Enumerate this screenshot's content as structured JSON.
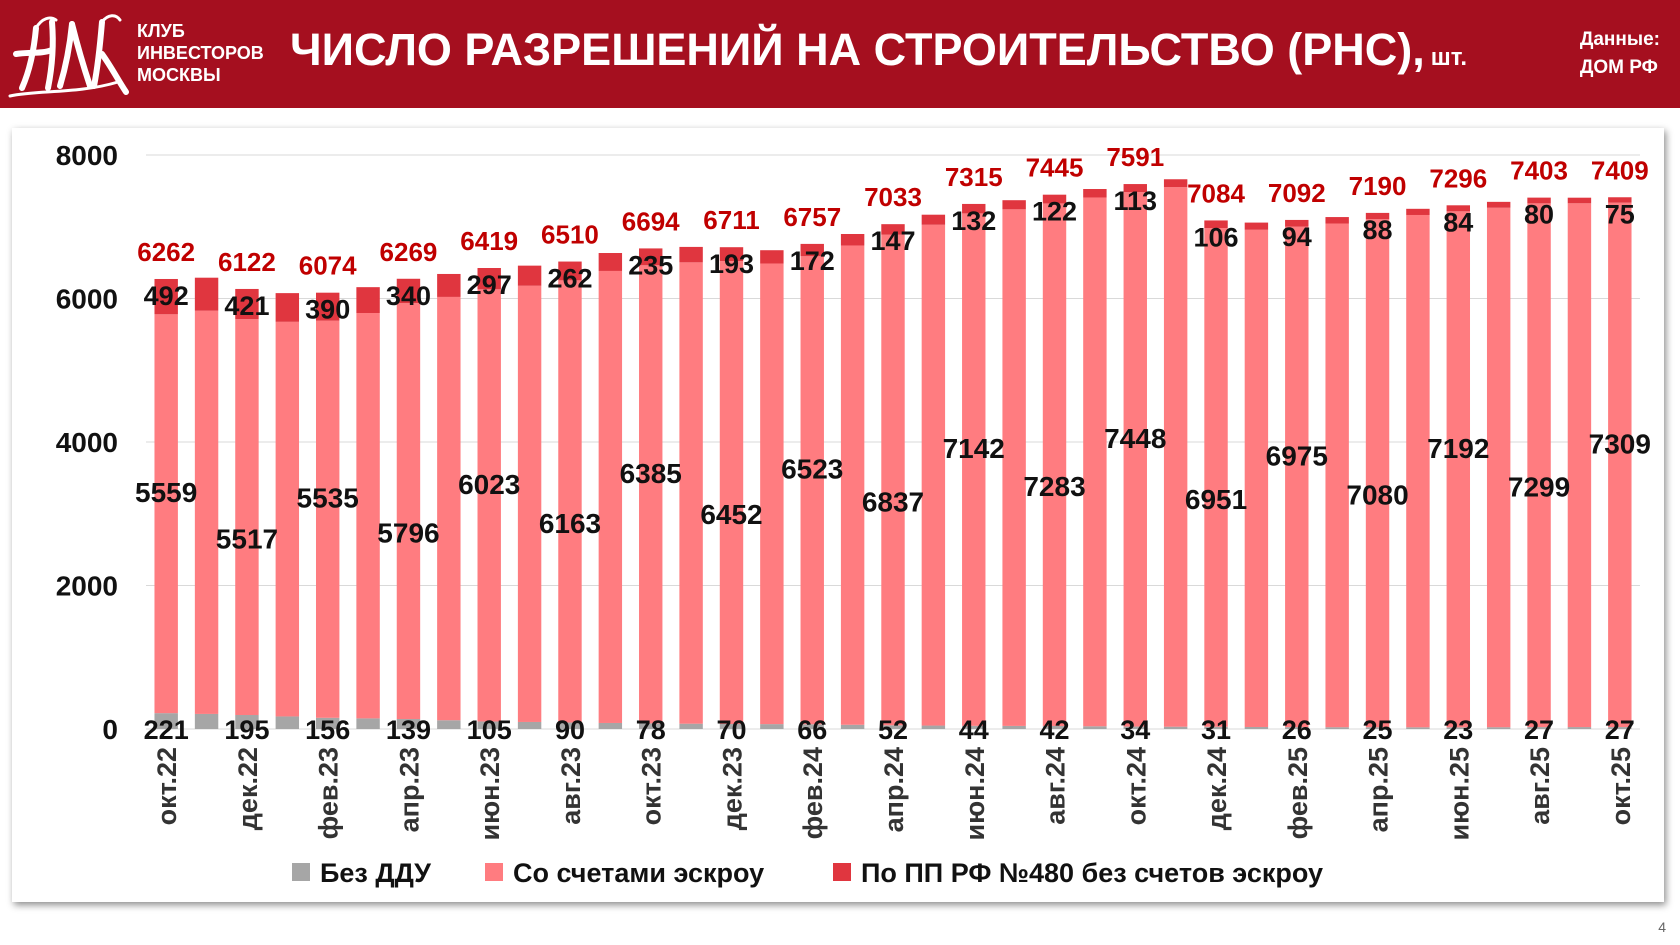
{
  "header": {
    "org_lines": [
      "КЛУБ",
      "ИНВЕСТОРОВ",
      "МОСКВЫ"
    ],
    "title": "ЧИСЛО РАЗРЕШЕНИЙ НА СТРОИТЕЛЬСТВО (РНС),",
    "title_unit": "шт.",
    "source_line1": "Данные:",
    "source_line2": "ДОМ РФ",
    "logo_icon": "club-monogram-logo"
  },
  "page_number": "4",
  "colors": {
    "header_bg": "#a50f1f",
    "no_ddu": "#a6a6a6",
    "escrow": "#ff7c80",
    "pp480": "#e0363f",
    "total_label": "#c00000"
  },
  "legend": {
    "no_ddu": "Без ДДУ",
    "escrow": "Со счетами эскроу",
    "pp480": "По ПП РФ №480 без счетов эскроу"
  },
  "chart_data": {
    "type": "bar",
    "stacked": true,
    "title": "ЧИСЛО РАЗРЕШЕНИЙ НА СТРОИТЕЛЬСТВО (РНС), шт.",
    "ylim": [
      0,
      8000
    ],
    "yticks": [
      0,
      2000,
      4000,
      6000,
      8000
    ],
    "grid": true,
    "legend_position": "bottom",
    "x_tick_labels": [
      "окт.22",
      "дек.22",
      "фев.23",
      "апр.23",
      "июн.23",
      "авг.23",
      "окт.23",
      "дек.23",
      "фев.24",
      "апр.24",
      "июн.24",
      "авг.24",
      "окт.24",
      "дек.24",
      "фев.25",
      "апр.25",
      "июн.25",
      "авг.25",
      "окт.25"
    ],
    "months": [
      "окт.22",
      "ноя.22",
      "дек.22",
      "янв.23",
      "фев.23",
      "мар.23",
      "апр.23",
      "май.23",
      "июн.23",
      "июл.23",
      "авг.23",
      "сен.23",
      "окт.23",
      "ноя.23",
      "дек.23",
      "янв.24",
      "фев.24",
      "мар.24",
      "апр.24",
      "май.24",
      "июн.24",
      "июл.24",
      "авг.24",
      "сен.24",
      "окт.24",
      "ноя.24",
      "дек.24",
      "янв.25",
      "фев.25",
      "мар.25",
      "апр.25",
      "май.25",
      "июн.25",
      "июл.25",
      "авг.25",
      "сен.25",
      "окт.25"
    ],
    "series": [
      {
        "name": "Без ДДУ",
        "values": [
          221,
          210,
          195,
          175,
          156,
          148,
          139,
          122,
          105,
          98,
          90,
          84,
          78,
          74,
          70,
          68,
          66,
          59,
          52,
          48,
          44,
          43,
          42,
          38,
          34,
          32,
          31,
          28,
          26,
          25,
          25,
          24,
          23,
          25,
          27,
          27,
          27
        ]
      },
      {
        "name": "Со счетами эскроу",
        "values": [
          5559,
          5620,
          5517,
          5500,
          5535,
          5650,
          5796,
          5900,
          6023,
          6080,
          6163,
          6300,
          6385,
          6430,
          6452,
          6420,
          6523,
          6680,
          6837,
          6980,
          7142,
          7200,
          7283,
          7370,
          7448,
          7520,
          6951,
          6930,
          6975,
          7020,
          7080,
          7140,
          7192,
          7240,
          7299,
          7300,
          7309
        ]
      },
      {
        "name": "По ПП РФ №480 без счетов эскроу",
        "values": [
          492,
          460,
          421,
          400,
          390,
          360,
          340,
          320,
          297,
          280,
          262,
          250,
          235,
          215,
          193,
          185,
          172,
          160,
          147,
          140,
          132,
          127,
          122,
          118,
          113,
          110,
          106,
          100,
          94,
          90,
          88,
          86,
          84,
          82,
          80,
          78,
          75
        ]
      }
    ],
    "labeled_points": [
      {
        "month": "окт.22",
        "no_ddu": 221,
        "escrow": 5559,
        "pp480": 492,
        "total": 6262
      },
      {
        "month": "дек.22",
        "no_ddu": 195,
        "escrow": 5517,
        "pp480": 421,
        "total": 6122
      },
      {
        "month": "фев.23",
        "no_ddu": 156,
        "escrow": 5535,
        "pp480": 390,
        "total": 6074
      },
      {
        "month": "апр.23",
        "no_ddu": 139,
        "escrow": 5796,
        "pp480": 340,
        "total": 6269
      },
      {
        "month": "июн.23",
        "no_ddu": 105,
        "escrow": 6023,
        "pp480": 297,
        "total": 6419
      },
      {
        "month": "авг.23",
        "no_ddu": 90,
        "escrow": 6163,
        "pp480": 262,
        "total": 6510
      },
      {
        "month": "окт.23",
        "no_ddu": 78,
        "escrow": 6385,
        "pp480": 235,
        "total": 6694
      },
      {
        "month": "дек.23",
        "no_ddu": 70,
        "escrow": 6452,
        "pp480": 193,
        "total": 6711
      },
      {
        "month": "фев.24",
        "no_ddu": 66,
        "escrow": 6523,
        "pp480": 172,
        "total": 6757
      },
      {
        "month": "апр.24",
        "no_ddu": 52,
        "escrow": 6837,
        "pp480": 147,
        "total": 7033
      },
      {
        "month": "июн.24",
        "no_ddu": 44,
        "escrow": 7142,
        "pp480": 132,
        "total": 7315
      },
      {
        "month": "авг.24",
        "no_ddu": 42,
        "escrow": 7283,
        "pp480": 122,
        "total": 7445
      },
      {
        "month": "окт.24",
        "no_ddu": 34,
        "escrow": 7448,
        "pp480": 113,
        "total": 7591
      },
      {
        "month": "дек.24",
        "no_ddu": 31,
        "escrow": 6951,
        "pp480": 106,
        "total": 7084
      },
      {
        "month": "фев.25",
        "no_ddu": 26,
        "escrow": 6975,
        "pp480": 94,
        "total": 7092
      },
      {
        "month": "апр.25",
        "no_ddu": 25,
        "escrow": 7080,
        "pp480": 88,
        "total": 7190
      },
      {
        "month": "июн.25",
        "no_ddu": 23,
        "escrow": 7192,
        "pp480": 84,
        "total": 7296
      },
      {
        "month": "авг.25",
        "no_ddu": 27,
        "escrow": 7299,
        "pp480": 80,
        "total": 7403
      },
      {
        "month": "окт.25",
        "no_ddu": 27,
        "escrow": 7309,
        "pp480": 75,
        "total": 7409
      }
    ]
  }
}
